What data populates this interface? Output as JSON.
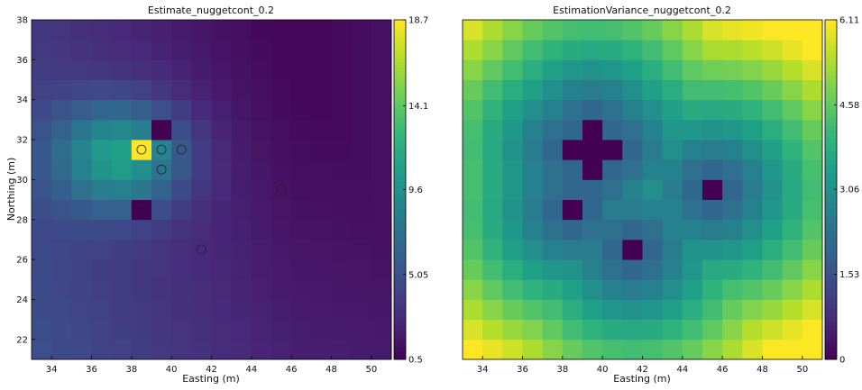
{
  "chart_data": [
    {
      "type": "heatmap",
      "title": "Estimate_nuggetcont_0.2",
      "xlabel": "Easting (m)",
      "ylabel": "Northing (m)",
      "xlim": [
        33,
        51
      ],
      "ylim": [
        21,
        38
      ],
      "x_ticks": [
        "34",
        "36",
        "38",
        "40",
        "42",
        "44",
        "46",
        "48",
        "50"
      ],
      "y_ticks": [
        "22",
        "24",
        "26",
        "28",
        "30",
        "32",
        "34",
        "36",
        "38"
      ],
      "colorbar": {
        "min": 0.5,
        "max": 18.7,
        "ticks": [
          "0.5",
          "5.05",
          "9.6",
          "14.1",
          "18.7"
        ]
      },
      "colormap": "viridis",
      "samples": [
        {
          "x": 38.5,
          "y": 31.5
        },
        {
          "x": 39.5,
          "y": 32.5
        },
        {
          "x": 39.5,
          "y": 31.5
        },
        {
          "x": 40.5,
          "y": 31.5
        },
        {
          "x": 39.5,
          "y": 30.5
        },
        {
          "x": 45.5,
          "y": 29.5
        },
        {
          "x": 38.5,
          "y": 28.5
        },
        {
          "x": 41.5,
          "y": 26.5
        }
      ]
    },
    {
      "type": "heatmap",
      "title": "EstimationVariance_nuggetcont_0.2",
      "xlabel": "Easting (m)",
      "ylabel": "",
      "xlim": [
        33,
        51
      ],
      "ylim": [
        21,
        38
      ],
      "x_ticks": [
        "34",
        "36",
        "38",
        "40",
        "42",
        "44",
        "46",
        "48",
        "50"
      ],
      "colorbar": {
        "min": 0,
        "max": 6.11,
        "ticks": [
          "0",
          "1.53",
          "3.06",
          "4.58",
          "6.11"
        ]
      },
      "colormap": "viridis"
    }
  ]
}
